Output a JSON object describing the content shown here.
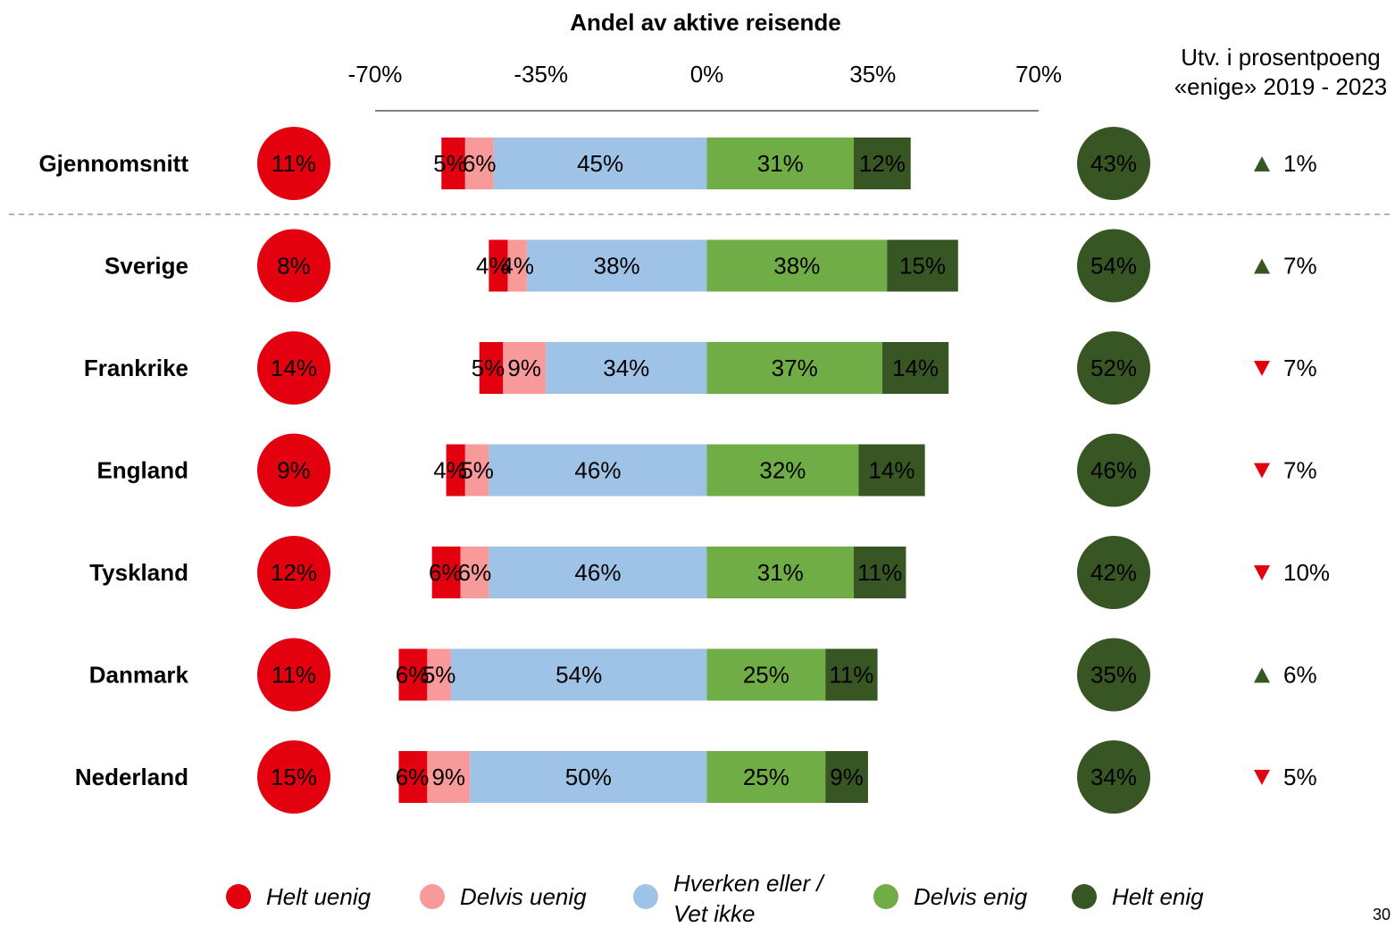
{
  "chart_data": {
    "type": "diverging_bar",
    "title": "Andel av aktive reisende",
    "change_header": [
      "Utv. i prosentpoeng",
      "«enige» 2019 - 2023"
    ],
    "page_number": "30",
    "categories": [
      "Gjennomsnitt",
      "Sverige",
      "Frankrike",
      "England",
      "Tyskland",
      "Danmark",
      "Nederland"
    ],
    "xlim": [
      -70,
      70
    ],
    "xticks": [
      {
        "value": -70,
        "label": "-70%"
      },
      {
        "value": -35,
        "label": "-35%"
      },
      {
        "value": 0,
        "label": "0%"
      },
      {
        "value": 35,
        "label": "35%"
      },
      {
        "value": 70,
        "label": "70%"
      }
    ],
    "series": [
      {
        "name": "Helt uenig",
        "color": "#e3000f",
        "values": [
          5,
          4,
          5,
          4,
          6,
          6,
          6
        ],
        "value_labels": [
          "5%",
          "4%",
          "5%",
          "4%",
          "6%",
          "6%",
          "6%"
        ]
      },
      {
        "name": "Delvis uenig",
        "color": "#f8999a",
        "values": [
          6,
          4,
          9,
          5,
          6,
          5,
          9
        ],
        "value_labels": [
          "6%",
          "4%",
          "9%",
          "5%",
          "6%",
          "5%",
          "9%"
        ]
      },
      {
        "name": "Hverken eller / Vet ikke",
        "color": "#9fc3e7",
        "values": [
          45,
          38,
          34,
          46,
          46,
          54,
          50
        ],
        "value_labels": [
          "45%",
          "38%",
          "34%",
          "46%",
          "46%",
          "54%",
          "50%"
        ]
      },
      {
        "name": "Delvis enig",
        "color": "#70ad47",
        "values": [
          31,
          38,
          37,
          32,
          31,
          25,
          25
        ],
        "value_labels": [
          "31%",
          "38%",
          "37%",
          "32%",
          "31%",
          "25%",
          "25%"
        ]
      },
      {
        "name": "Helt enig",
        "color": "#375623",
        "values": [
          12,
          15,
          14,
          14,
          11,
          11,
          9
        ],
        "value_labels": [
          "12%",
          "15%",
          "14%",
          "14%",
          "11%",
          "11%",
          "9%"
        ]
      }
    ],
    "disagree_totals": [
      11,
      8,
      14,
      9,
      12,
      11,
      15
    ],
    "disagree_labels": [
      "11%",
      "8%",
      "14%",
      "9%",
      "12%",
      "11%",
      "15%"
    ],
    "agree_totals": [
      43,
      54,
      52,
      46,
      42,
      35,
      34
    ],
    "agree_labels": [
      "43%",
      "54%",
      "52%",
      "46%",
      "42%",
      "35%",
      "34%"
    ],
    "changes": [
      1,
      7,
      -7,
      -7,
      -10,
      6,
      -5
    ],
    "change_labels": [
      "1%",
      "7%",
      "7%",
      "7%",
      "10%",
      "6%",
      "5%"
    ],
    "up_color": "#375623",
    "down_color": "#e3000f"
  }
}
